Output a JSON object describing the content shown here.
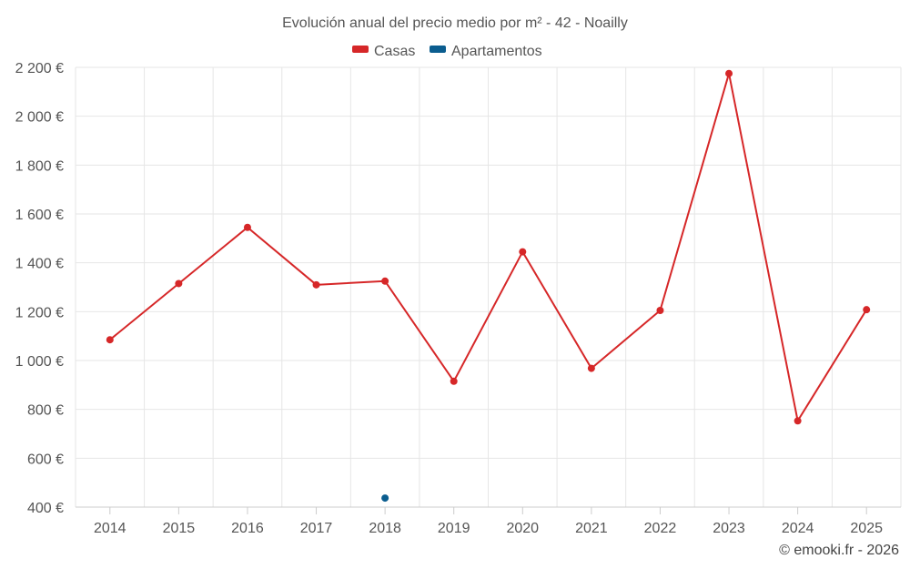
{
  "chart_data": {
    "type": "line",
    "title": "Evolución anual del precio medio por m² - 42 - Noailly",
    "categories": [
      "2014",
      "2015",
      "2016",
      "2017",
      "2018",
      "2019",
      "2020",
      "2021",
      "2022",
      "2023",
      "2024",
      "2025"
    ],
    "series": [
      {
        "name": "Casas",
        "color": "#d62728",
        "values": [
          1085,
          1315,
          1545,
          1310,
          1325,
          915,
          1445,
          968,
          1205,
          2175,
          753,
          1208
        ]
      },
      {
        "name": "Apartamentos",
        "color": "#0b5d8f",
        "values": [
          null,
          null,
          null,
          null,
          437,
          null,
          null,
          null,
          null,
          null,
          null,
          null
        ]
      }
    ],
    "ylim": [
      400,
      2200
    ],
    "yticks": [
      400,
      600,
      800,
      1000,
      1200,
      1400,
      1600,
      1800,
      2000,
      2200
    ],
    "ytick_labels": [
      "400 €",
      "600 €",
      "800 €",
      "1 000 €",
      "1 200 €",
      "1 400 €",
      "1 600 €",
      "1 800 €",
      "2 000 €",
      "2 200 €"
    ],
    "xlabel": "",
    "ylabel": "",
    "grid": true,
    "legend_position": "top-center"
  },
  "credit": "© emooki.fr - 2026"
}
